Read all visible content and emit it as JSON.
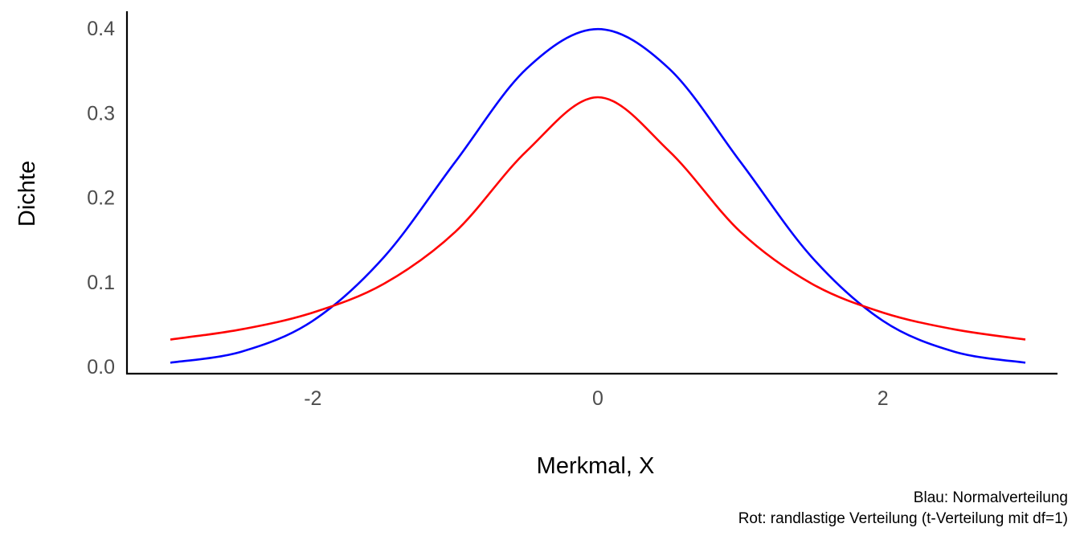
{
  "chart_data": {
    "type": "line",
    "title": "",
    "xlabel": "Merkmal, X",
    "ylabel": "Dichte",
    "xlim": [
      -3,
      3
    ],
    "ylim": [
      0,
      0.4
    ],
    "x_ticks": [
      -2,
      0,
      2
    ],
    "x_tick_labels": [
      "-2",
      "0",
      "2"
    ],
    "y_ticks": [
      0.0,
      0.1,
      0.2,
      0.3,
      0.4
    ],
    "y_tick_labels": [
      "0.0",
      "0.1",
      "0.2",
      "0.3",
      "0.4"
    ],
    "grid": false,
    "legend": "none",
    "x": [
      -3.0,
      -2.5,
      -2.0,
      -1.5,
      -1.0,
      -0.5,
      0.0,
      0.5,
      1.0,
      1.5,
      2.0,
      2.5,
      3.0
    ],
    "series": [
      {
        "color": "#0000ff",
        "values": [
          0.0044,
          0.0175,
          0.054,
          0.1295,
          0.242,
          0.3521,
          0.3989,
          0.3521,
          0.242,
          0.1295,
          0.054,
          0.0175,
          0.0044
        ]
      },
      {
        "color": "#ff0000",
        "values": [
          0.0318,
          0.0439,
          0.0637,
          0.0979,
          0.1592,
          0.2546,
          0.3183,
          0.2546,
          0.1592,
          0.0979,
          0.0637,
          0.0439,
          0.0318
        ]
      }
    ]
  },
  "caption": {
    "line1": "Blau: Normalverteilung",
    "line2": "Rot: randlastige Verteilung (t-Verteilung mit df=1)"
  }
}
